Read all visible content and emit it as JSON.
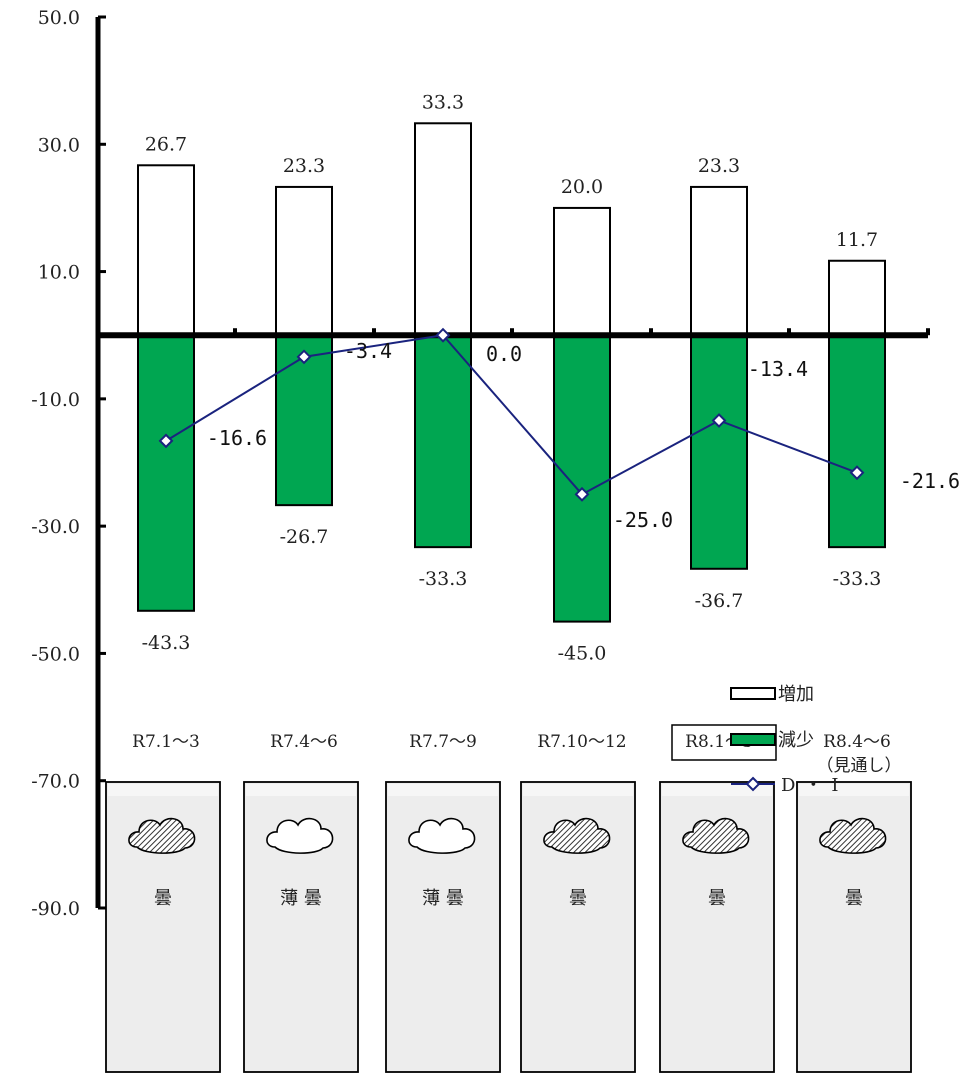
{
  "chart_data": {
    "type": "bar",
    "categories": [
      "R7.1～3",
      "R7.4～6",
      "R7.7～9",
      "R7.10～12",
      "R8.1～3",
      "R8.4～6"
    ],
    "category_note": {
      "index": 5,
      "text": "（見通し）"
    },
    "highlighted_category": 4,
    "series": [
      {
        "name": "増加",
        "kind": "bar",
        "color": "#ffffff",
        "values": [
          26.7,
          23.3,
          33.3,
          20.0,
          23.3,
          11.7
        ]
      },
      {
        "name": "減少",
        "kind": "bar",
        "color": "#00a651",
        "values": [
          -43.3,
          -26.7,
          -33.3,
          -45.0,
          -36.7,
          -33.3
        ]
      },
      {
        "name": "D・I",
        "kind": "line",
        "color": "#1a237e",
        "values": [
          -16.6,
          -3.4,
          0.0,
          -25.0,
          -13.4,
          -21.6
        ]
      }
    ],
    "bar_labels": {
      "increase": [
        "26.7",
        "23.3",
        "33.3",
        "20.0",
        "23.3",
        "11.7"
      ],
      "decrease": [
        "-43.3",
        "-26.7",
        "-33.3",
        "-45.0",
        "-36.7",
        "-33.3"
      ],
      "di": [
        "-16.6",
        "-3.4",
        "0.0",
        "-25.0",
        "-13.4",
        "-21.6"
      ]
    },
    "y_ticks": [
      "50.0",
      "30.0",
      "10.0",
      "-10.0",
      "-30.0",
      "-50.0",
      "-70.0",
      "-90.0"
    ],
    "ylim": [
      -90,
      50
    ],
    "legend_position": "right",
    "grid": false
  },
  "weather": [
    {
      "label": "曇",
      "icon": "cloud-hatched-icon"
    },
    {
      "label": "薄 曇",
      "icon": "cloud-outline-icon"
    },
    {
      "label": "薄 曇",
      "icon": "cloud-outline-icon"
    },
    {
      "label": "曇",
      "icon": "cloud-hatched-icon"
    },
    {
      "label": "曇",
      "icon": "cloud-hatched-icon"
    },
    {
      "label": "曇",
      "icon": "cloud-hatched-icon"
    }
  ]
}
